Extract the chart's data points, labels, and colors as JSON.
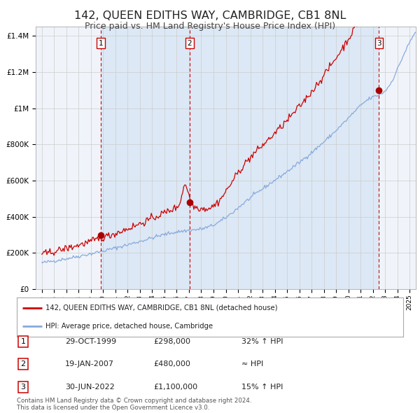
{
  "title": "142, QUEEN EDITHS WAY, CAMBRIDGE, CB1 8NL",
  "subtitle": "Price paid vs. HM Land Registry's House Price Index (HPI)",
  "title_fontsize": 11.5,
  "subtitle_fontsize": 9,
  "background_color": "#ffffff",
  "plot_bg_color": "#f0f4fa",
  "grid_color": "#cccccc",
  "red_line_color": "#cc0000",
  "blue_line_color": "#88aadd",
  "sale_marker_color": "#aa0000",
  "dashed_line_color": "#cc0000",
  "highlight_bg": "#dce8f5",
  "ylim": [
    0,
    1450000
  ],
  "yticks": [
    0,
    200000,
    400000,
    600000,
    800000,
    1000000,
    1200000,
    1400000
  ],
  "ytick_labels": [
    "£0",
    "£200K",
    "£400K",
    "£600K",
    "£800K",
    "£1M",
    "£1.2M",
    "£1.4M"
  ],
  "xlim_start": 1994.5,
  "xlim_end": 2025.5,
  "xticks": [
    1995,
    1996,
    1997,
    1998,
    1999,
    2000,
    2001,
    2002,
    2003,
    2004,
    2005,
    2006,
    2007,
    2008,
    2009,
    2010,
    2011,
    2012,
    2013,
    2014,
    2015,
    2016,
    2017,
    2018,
    2019,
    2020,
    2021,
    2022,
    2023,
    2024,
    2025
  ],
  "sale1_x": 1999.83,
  "sale1_y": 298000,
  "sale1_label": "1",
  "sale1_date": "29-OCT-1999",
  "sale1_price": "£298,000",
  "sale1_hpi": "32% ↑ HPI",
  "sale2_x": 2007.05,
  "sale2_y": 480000,
  "sale2_label": "2",
  "sale2_date": "19-JAN-2007",
  "sale2_price": "£480,000",
  "sale2_hpi": "≈ HPI",
  "sale3_x": 2022.5,
  "sale3_y": 1100000,
  "sale3_label": "3",
  "sale3_date": "30-JUN-2022",
  "sale3_price": "£1,100,000",
  "sale3_hpi": "15% ↑ HPI",
  "legend_label_red": "142, QUEEN EDITHS WAY, CAMBRIDGE, CB1 8NL (detached house)",
  "legend_label_blue": "HPI: Average price, detached house, Cambridge",
  "footer1": "Contains HM Land Registry data © Crown copyright and database right 2024.",
  "footer2": "This data is licensed under the Open Government Licence v3.0."
}
